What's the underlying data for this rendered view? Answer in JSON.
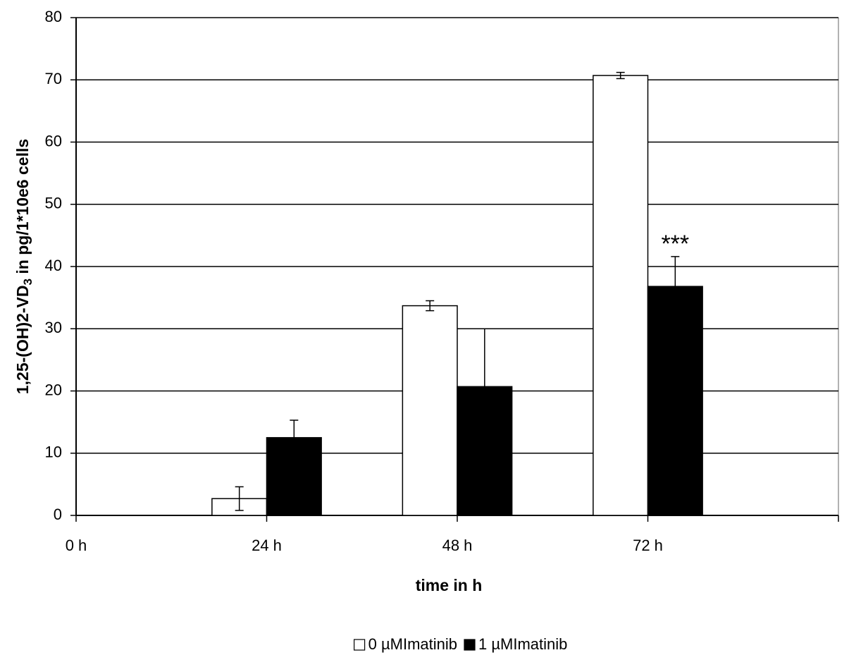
{
  "chart_data": {
    "type": "bar",
    "ylabel": {
      "main": "1,25-(OH)2-VD",
      "sub": "3",
      "rest": " in pg/1*10e6 cells"
    },
    "xlabel": "time in h",
    "categories": [
      "0 h",
      "24 h",
      "48 h",
      "72 h"
    ],
    "series": [
      {
        "name": "0 µMImatinib",
        "color": "#ffffff",
        "values": [
          null,
          2.7,
          33.7,
          70.7
        ],
        "errors": [
          null,
          1.9,
          0.8,
          0.5
        ]
      },
      {
        "name": "1 µMImatinib",
        "color": "#000000",
        "values": [
          null,
          12.5,
          20.7,
          36.8
        ],
        "errors": [
          null,
          2.8,
          9.3,
          4.8
        ]
      }
    ],
    "annotation": "***",
    "ylim": [
      0,
      80
    ],
    "yticks": [
      0,
      10,
      20,
      30,
      40,
      50,
      60,
      70,
      80
    ],
    "grid": true,
    "legend": "bottom"
  }
}
